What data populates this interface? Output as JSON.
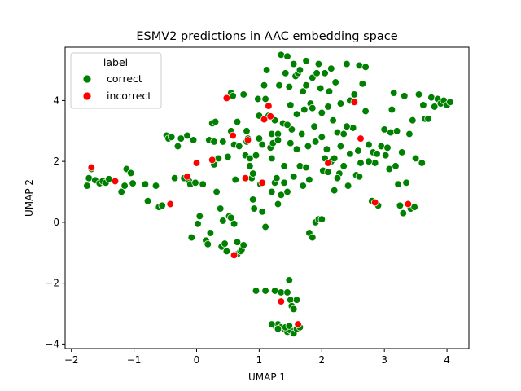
{
  "chart_data": {
    "type": "scatter",
    "title": "ESMV2 predictions in AAC embedding space",
    "xlabel": "UMAP 1",
    "ylabel": "UMAP 2",
    "xlim": [
      -2.1,
      4.35
    ],
    "ylim": [
      -4.15,
      5.75
    ],
    "xticks": [
      "−2",
      "−1",
      "0",
      "1",
      "2",
      "3",
      "4"
    ],
    "xtick_values": [
      -2,
      -1,
      0,
      1,
      2,
      3,
      4
    ],
    "yticks": [
      "−4",
      "−2",
      "0",
      "2",
      "4"
    ],
    "ytick_values": [
      -4,
      -2,
      0,
      2,
      4
    ],
    "grid": false,
    "legend": {
      "title": "label",
      "placement": "top-left"
    },
    "series": [
      {
        "name": "correct",
        "color": "#008000",
        "points": [
          [
            -1.75,
            1.2
          ],
          [
            -1.72,
            1.45
          ],
          [
            -1.68,
            1.75
          ],
          [
            -1.62,
            1.38
          ],
          [
            -1.55,
            1.28
          ],
          [
            -1.5,
            1.35
          ],
          [
            -1.45,
            1.3
          ],
          [
            -1.4,
            1.42
          ],
          [
            -1.3,
            1.35
          ],
          [
            -1.2,
            1.0
          ],
          [
            -1.15,
            1.2
          ],
          [
            -1.12,
            1.75
          ],
          [
            -1.05,
            1.62
          ],
          [
            -1.02,
            1.28
          ],
          [
            -0.82,
            1.25
          ],
          [
            -0.78,
            0.7
          ],
          [
            -0.65,
            1.2
          ],
          [
            -0.6,
            0.5
          ],
          [
            -0.55,
            0.55
          ],
          [
            -0.48,
            2.85
          ],
          [
            -0.45,
            2.75
          ],
          [
            -0.4,
            2.8
          ],
          [
            -0.35,
            1.45
          ],
          [
            -0.3,
            2.5
          ],
          [
            -0.25,
            2.75
          ],
          [
            -0.2,
            1.45
          ],
          [
            -0.15,
            2.85
          ],
          [
            -0.12,
            1.35
          ],
          [
            -0.1,
            1.25
          ],
          [
            -0.08,
            -0.5
          ],
          [
            -0.05,
            2.7
          ],
          [
            -0.02,
            1.3
          ],
          [
            0.1,
            1.25
          ],
          [
            0.15,
            -0.6
          ],
          [
            0.18,
            -0.72
          ],
          [
            0.2,
            2.7
          ],
          [
            0.22,
            -0.35
          ],
          [
            0.25,
            3.25
          ],
          [
            0.28,
            2.65
          ],
          [
            0.3,
            3.3
          ],
          [
            0.3,
            2.05
          ],
          [
            0.32,
            1.0
          ],
          [
            0.38,
            0.45
          ],
          [
            0.4,
            -0.8
          ],
          [
            0.42,
            2.65
          ],
          [
            0.45,
            -0.7
          ],
          [
            0.48,
            -0.95
          ],
          [
            0.5,
            2.15
          ],
          [
            0.52,
            0.2
          ],
          [
            0.55,
            0.15
          ],
          [
            0.55,
            4.25
          ],
          [
            0.58,
            4.15
          ],
          [
            0.6,
            2.55
          ],
          [
            0.62,
            1.4
          ],
          [
            0.65,
            -1.05
          ],
          [
            0.68,
            2.5
          ],
          [
            0.7,
            -0.95
          ],
          [
            0.72,
            -0.9
          ],
          [
            0.75,
            4.2
          ],
          [
            0.78,
            2.2
          ],
          [
            0.8,
            3.0
          ],
          [
            0.82,
            2.75
          ],
          [
            0.85,
            2.1
          ],
          [
            0.88,
            1.45
          ],
          [
            0.9,
            0.75
          ],
          [
            0.92,
            0.45
          ],
          [
            0.95,
            2.2
          ],
          [
            0.98,
            4.05
          ],
          [
            1.0,
            2.75
          ],
          [
            1.02,
            1.25
          ],
          [
            1.05,
            2.55
          ],
          [
            1.08,
            4.5
          ],
          [
            1.1,
            4.05
          ],
          [
            1.12,
            5.0
          ],
          [
            1.15,
            3.5
          ],
          [
            1.18,
            2.45
          ],
          [
            1.2,
            2.9
          ],
          [
            1.22,
            2.6
          ],
          [
            1.25,
            1.3
          ],
          [
            1.28,
            1.45
          ],
          [
            1.3,
            2.9
          ],
          [
            1.32,
            4.5
          ],
          [
            1.35,
            5.5
          ],
          [
            1.38,
            3.25
          ],
          [
            1.4,
            1.85
          ],
          [
            1.42,
            4.9
          ],
          [
            1.45,
            5.45
          ],
          [
            1.48,
            4.45
          ],
          [
            1.5,
            2.6
          ],
          [
            1.52,
            3.05
          ],
          [
            1.55,
            5.2
          ],
          [
            1.58,
            4.8
          ],
          [
            1.6,
            2.4
          ],
          [
            1.62,
            4.9
          ],
          [
            1.65,
            5.0
          ],
          [
            1.68,
            2.9
          ],
          [
            1.7,
            1.2
          ],
          [
            1.72,
            3.7
          ],
          [
            1.75,
            5.3
          ],
          [
            1.78,
            2.5
          ],
          [
            1.8,
            1.4
          ],
          [
            1.82,
            3.9
          ],
          [
            1.85,
            4.75
          ],
          [
            1.88,
            3.15
          ],
          [
            1.9,
            2.65
          ],
          [
            1.92,
            4.9
          ],
          [
            1.95,
            5.2
          ],
          [
            1.98,
            4.4
          ],
          [
            2.0,
            3.6
          ],
          [
            2.02,
            1.7
          ],
          [
            2.05,
            4.9
          ],
          [
            2.08,
            2.4
          ],
          [
            2.1,
            3.8
          ],
          [
            2.12,
            4.3
          ],
          [
            2.15,
            5.05
          ],
          [
            2.18,
            3.35
          ],
          [
            2.2,
            1.05
          ],
          [
            2.22,
            4.6
          ],
          [
            2.25,
            2.95
          ],
          [
            2.28,
            1.6
          ],
          [
            2.3,
            3.9
          ],
          [
            2.35,
            2.9
          ],
          [
            2.4,
            5.2
          ],
          [
            2.42,
            1.2
          ],
          [
            2.45,
            2.25
          ],
          [
            2.5,
            3.1
          ],
          [
            2.52,
            4.2
          ],
          [
            2.55,
            1.55
          ],
          [
            2.58,
            2.35
          ],
          [
            2.6,
            5.15
          ],
          [
            2.62,
            1.95
          ],
          [
            2.65,
            4.55
          ],
          [
            2.7,
            5.1
          ],
          [
            2.75,
            2.55
          ],
          [
            2.8,
            0.7
          ],
          [
            2.82,
            2.3
          ],
          [
            2.85,
            1.95
          ],
          [
            2.88,
            2.25
          ],
          [
            2.9,
            0.55
          ],
          [
            2.95,
            2.5
          ],
          [
            3.0,
            3.05
          ],
          [
            3.02,
            2.2
          ],
          [
            3.05,
            2.45
          ],
          [
            3.08,
            1.75
          ],
          [
            3.1,
            2.95
          ],
          [
            3.12,
            3.7
          ],
          [
            3.15,
            4.25
          ],
          [
            3.18,
            1.85
          ],
          [
            3.2,
            3.0
          ],
          [
            3.22,
            1.25
          ],
          [
            3.25,
            0.55
          ],
          [
            3.28,
            2.3
          ],
          [
            3.3,
            0.3
          ],
          [
            3.32,
            4.15
          ],
          [
            3.35,
            1.3
          ],
          [
            3.4,
            2.9
          ],
          [
            3.42,
            0.45
          ],
          [
            3.45,
            3.35
          ],
          [
            3.48,
            0.5
          ],
          [
            3.5,
            2.1
          ],
          [
            3.55,
            4.2
          ],
          [
            3.6,
            1.95
          ],
          [
            3.62,
            3.85
          ],
          [
            3.65,
            3.4
          ],
          [
            3.7,
            3.4
          ],
          [
            3.75,
            4.1
          ],
          [
            3.8,
            3.8
          ],
          [
            3.85,
            4.05
          ],
          [
            3.9,
            3.9
          ],
          [
            3.95,
            4.0
          ],
          [
            4.0,
            3.85
          ],
          [
            4.05,
            3.95
          ],
          [
            0.02,
            -0.05
          ],
          [
            0.05,
            0.2
          ],
          [
            0.28,
            1.9
          ],
          [
            0.35,
            2.1
          ],
          [
            0.42,
            0.05
          ],
          [
            0.6,
            -0.05
          ],
          [
            0.65,
            -0.65
          ],
          [
            0.75,
            -0.75
          ],
          [
            1.05,
            0.35
          ],
          [
            1.1,
            -0.15
          ],
          [
            1.2,
            1.0
          ],
          [
            1.3,
            0.6
          ],
          [
            1.35,
            0.9
          ],
          [
            1.4,
            1.3
          ],
          [
            1.45,
            1.0
          ],
          [
            1.55,
            1.5
          ],
          [
            1.65,
            1.85
          ],
          [
            1.75,
            1.8
          ],
          [
            1.8,
            -0.35
          ],
          [
            1.85,
            -0.5
          ],
          [
            1.9,
            0.0
          ],
          [
            1.95,
            0.1
          ],
          [
            2.0,
            0.1
          ],
          [
            2.1,
            1.65
          ],
          [
            2.15,
            2.0
          ],
          [
            2.25,
            1.45
          ],
          [
            2.35,
            1.85
          ],
          [
            2.6,
            1.5
          ],
          [
            2.7,
            3.65
          ],
          [
            2.75,
            2.0
          ],
          [
            0.55,
            3.0
          ],
          [
            0.65,
            3.3
          ],
          [
            0.8,
            2.65
          ],
          [
            0.85,
            1.85
          ],
          [
            0.9,
            1.6
          ],
          [
            1.0,
            3.5
          ],
          [
            1.2,
            2.1
          ],
          [
            1.25,
            3.35
          ],
          [
            1.3,
            2.7
          ],
          [
            1.45,
            3.2
          ],
          [
            1.5,
            3.85
          ],
          [
            1.6,
            3.55
          ],
          [
            1.7,
            4.3
          ],
          [
            1.75,
            4.5
          ],
          [
            1.85,
            3.75
          ],
          [
            2.0,
            2.8
          ],
          [
            2.05,
            2.1
          ],
          [
            2.2,
            2.1
          ],
          [
            2.3,
            2.5
          ],
          [
            2.4,
            3.15
          ],
          [
            2.45,
            4.0
          ],
          [
            0.95,
            -2.25
          ],
          [
            1.1,
            -2.25
          ],
          [
            1.25,
            -2.25
          ],
          [
            1.35,
            -2.3
          ],
          [
            1.45,
            -2.3
          ],
          [
            1.48,
            -1.9
          ],
          [
            1.5,
            -2.55
          ],
          [
            1.52,
            -2.75
          ],
          [
            1.55,
            -2.85
          ],
          [
            1.6,
            -2.55
          ],
          [
            1.25,
            -3.4
          ],
          [
            1.3,
            -3.35
          ],
          [
            1.35,
            -3.45
          ],
          [
            1.4,
            -3.5
          ],
          [
            1.45,
            -3.6
          ],
          [
            1.5,
            -3.55
          ],
          [
            1.55,
            -3.65
          ],
          [
            1.6,
            -3.5
          ],
          [
            1.65,
            -3.45
          ],
          [
            1.2,
            -3.35
          ],
          [
            1.3,
            -3.5
          ],
          [
            1.42,
            -3.45
          ],
          [
            1.48,
            -3.4
          ]
        ]
      },
      {
        "name": "incorrect",
        "color": "#ff0000",
        "points": [
          [
            -1.68,
            1.8
          ],
          [
            -1.3,
            1.35
          ],
          [
            -0.42,
            0.6
          ],
          [
            -0.15,
            1.5
          ],
          [
            0.0,
            1.95
          ],
          [
            0.25,
            2.05
          ],
          [
            0.48,
            4.08
          ],
          [
            0.58,
            2.85
          ],
          [
            0.6,
            -1.08
          ],
          [
            0.78,
            1.45
          ],
          [
            0.82,
            2.7
          ],
          [
            1.05,
            1.3
          ],
          [
            1.08,
            3.38
          ],
          [
            1.15,
            3.82
          ],
          [
            1.18,
            3.48
          ],
          [
            1.35,
            -2.6
          ],
          [
            1.62,
            -3.35
          ],
          [
            2.1,
            1.95
          ],
          [
            2.52,
            3.95
          ],
          [
            2.62,
            2.75
          ],
          [
            2.85,
            0.65
          ],
          [
            3.38,
            0.6
          ]
        ]
      }
    ]
  }
}
